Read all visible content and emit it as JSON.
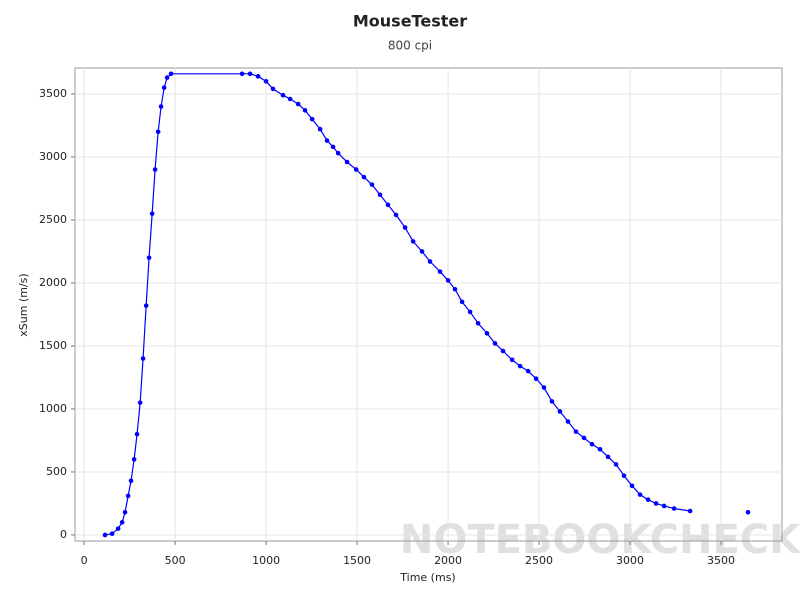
{
  "chart_data": {
    "type": "line",
    "title": "MouseTester",
    "subtitle": "800 cpi",
    "x_label": "Time (ms)",
    "y_label": "xSum (m/s)",
    "watermark": "NOTEBOOKCHECK",
    "xlim": [
      -50,
      3835
    ],
    "ylim": [
      -48,
      3706
    ],
    "xticks": [
      0,
      500,
      1000,
      1500,
      2000,
      2500,
      3000,
      3500
    ],
    "yticks": [
      0,
      500,
      1000,
      1500,
      2000,
      2500,
      3000,
      3500
    ],
    "grid": true,
    "series": [
      {
        "name": "xSum",
        "color": "#0000ff",
        "x": [
          115,
          154,
          187,
          209,
          225,
          242,
          258,
          275,
          291,
          308,
          324,
          341,
          357,
          374,
          390,
          407,
          423,
          440,
          456,
          478,
          868,
          912,
          956,
          1000,
          1038,
          1093,
          1132,
          1176,
          1214,
          1253,
          1297,
          1335,
          1368,
          1396,
          1445,
          1495,
          1538,
          1582,
          1626,
          1670,
          1714,
          1764,
          1808,
          1857,
          1901,
          1956,
          2000,
          2038,
          2077,
          2121,
          2165,
          2214,
          2258,
          2302,
          2352,
          2396,
          2440,
          2484,
          2527,
          2571,
          2615,
          2659,
          2703,
          2747,
          2791,
          2835,
          2879,
          2923,
          2967,
          3011,
          3055,
          3099,
          3143,
          3187,
          3242,
          3330,
          null,
          3648
        ],
        "values": [
          0,
          10,
          50,
          100,
          180,
          310,
          430,
          600,
          800,
          1050,
          1400,
          1820,
          2200,
          2550,
          2900,
          3200,
          3400,
          3550,
          3630,
          3660,
          3660,
          3660,
          3640,
          3600,
          3540,
          3490,
          3460,
          3420,
          3370,
          3300,
          3220,
          3130,
          3080,
          3030,
          2960,
          2900,
          2840,
          2780,
          2700,
          2620,
          2540,
          2440,
          2330,
          2250,
          2170,
          2090,
          2020,
          1950,
          1850,
          1770,
          1680,
          1600,
          1520,
          1460,
          1390,
          1340,
          1300,
          1240,
          1170,
          1060,
          980,
          900,
          820,
          770,
          720,
          680,
          620,
          560,
          470,
          390,
          320,
          280,
          250,
          230,
          210,
          190,
          null,
          180
        ]
      }
    ]
  }
}
